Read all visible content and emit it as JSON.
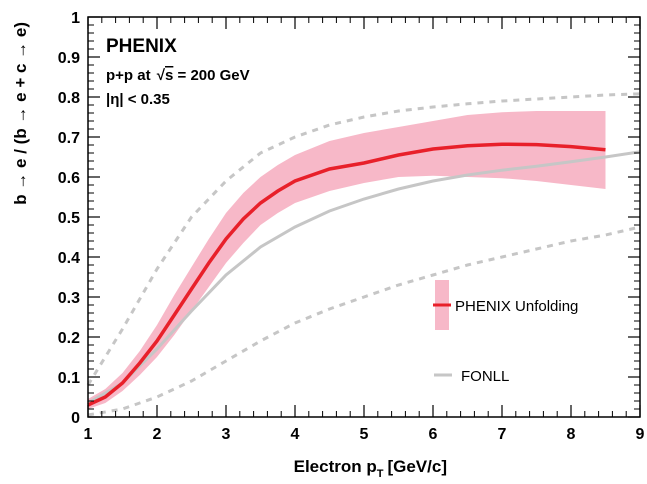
{
  "chart_data": {
    "type": "line",
    "xlabel": "Electron p",
    "xlabel_subscript": "T",
    "xlabel_unit": "[GeV/c]",
    "ylabel": "b → e / (b → e + c → e)",
    "xlim": [
      1,
      9
    ],
    "ylim": [
      0,
      1
    ],
    "x_ticks": [
      1,
      2,
      3,
      4,
      5,
      6,
      7,
      8,
      9
    ],
    "y_ticks": [
      0,
      0.1,
      0.2,
      0.3,
      0.4,
      0.5,
      0.6,
      0.7,
      0.8,
      0.9,
      1
    ],
    "y_tick_labels": [
      "0",
      "0.1",
      "0.2",
      "0.3",
      "0.4",
      "0.5",
      "0.6",
      "0.7",
      "0.8",
      "0.9",
      "1"
    ],
    "x_tick_labels": [
      "1",
      "2",
      "3",
      "4",
      "5",
      "6",
      "7",
      "8",
      "9"
    ],
    "grid": false,
    "legend_position": "right-center",
    "annotations": {
      "experiment": "PHENIX",
      "system_prefix": "p+p at ",
      "sqrt_s_label": "s",
      "system_suffix": " = 200 GeV",
      "eta_cut": "|η| < 0.35"
    },
    "series": [
      {
        "name": "PHENIX Unfolding",
        "color": "#e8202a",
        "band_color": "#f7b8c8",
        "x": [
          1.0,
          1.25,
          1.5,
          1.75,
          2.0,
          2.25,
          2.5,
          2.75,
          3.0,
          3.25,
          3.5,
          3.75,
          4.0,
          4.5,
          5.0,
          5.5,
          6.0,
          6.5,
          7.0,
          7.5,
          8.0,
          8.5
        ],
        "values": [
          0.03,
          0.05,
          0.085,
          0.135,
          0.19,
          0.255,
          0.32,
          0.385,
          0.445,
          0.495,
          0.535,
          0.565,
          0.59,
          0.62,
          0.635,
          0.655,
          0.67,
          0.678,
          0.682,
          0.681,
          0.676,
          0.668
        ],
        "band_low": [
          0.02,
          0.035,
          0.065,
          0.105,
          0.15,
          0.205,
          0.265,
          0.325,
          0.385,
          0.435,
          0.48,
          0.51,
          0.535,
          0.565,
          0.585,
          0.6,
          0.603,
          0.6,
          0.597,
          0.59,
          0.58,
          0.57
        ],
        "band_high": [
          0.045,
          0.07,
          0.11,
          0.165,
          0.23,
          0.305,
          0.375,
          0.445,
          0.51,
          0.56,
          0.6,
          0.63,
          0.655,
          0.69,
          0.71,
          0.725,
          0.74,
          0.755,
          0.762,
          0.765,
          0.765,
          0.765
        ]
      },
      {
        "name": "FONLL",
        "color": "#c6c6c6",
        "x": [
          1.0,
          1.5,
          2.0,
          2.5,
          3.0,
          3.5,
          4.0,
          4.5,
          5.0,
          5.5,
          6.0,
          6.5,
          7.0,
          7.5,
          8.0,
          8.5,
          9.0
        ],
        "values": [
          0.035,
          0.085,
          0.17,
          0.265,
          0.355,
          0.425,
          0.475,
          0.515,
          0.545,
          0.57,
          0.59,
          0.605,
          0.617,
          0.627,
          0.638,
          0.65,
          0.663
        ],
        "band_low": [
          0.005,
          0.02,
          0.05,
          0.09,
          0.14,
          0.19,
          0.235,
          0.27,
          0.3,
          0.33,
          0.355,
          0.38,
          0.4,
          0.42,
          0.44,
          0.455,
          0.475
        ],
        "band_high": [
          0.08,
          0.22,
          0.37,
          0.5,
          0.59,
          0.66,
          0.7,
          0.73,
          0.75,
          0.765,
          0.775,
          0.783,
          0.79,
          0.795,
          0.8,
          0.805,
          0.808
        ]
      }
    ]
  }
}
